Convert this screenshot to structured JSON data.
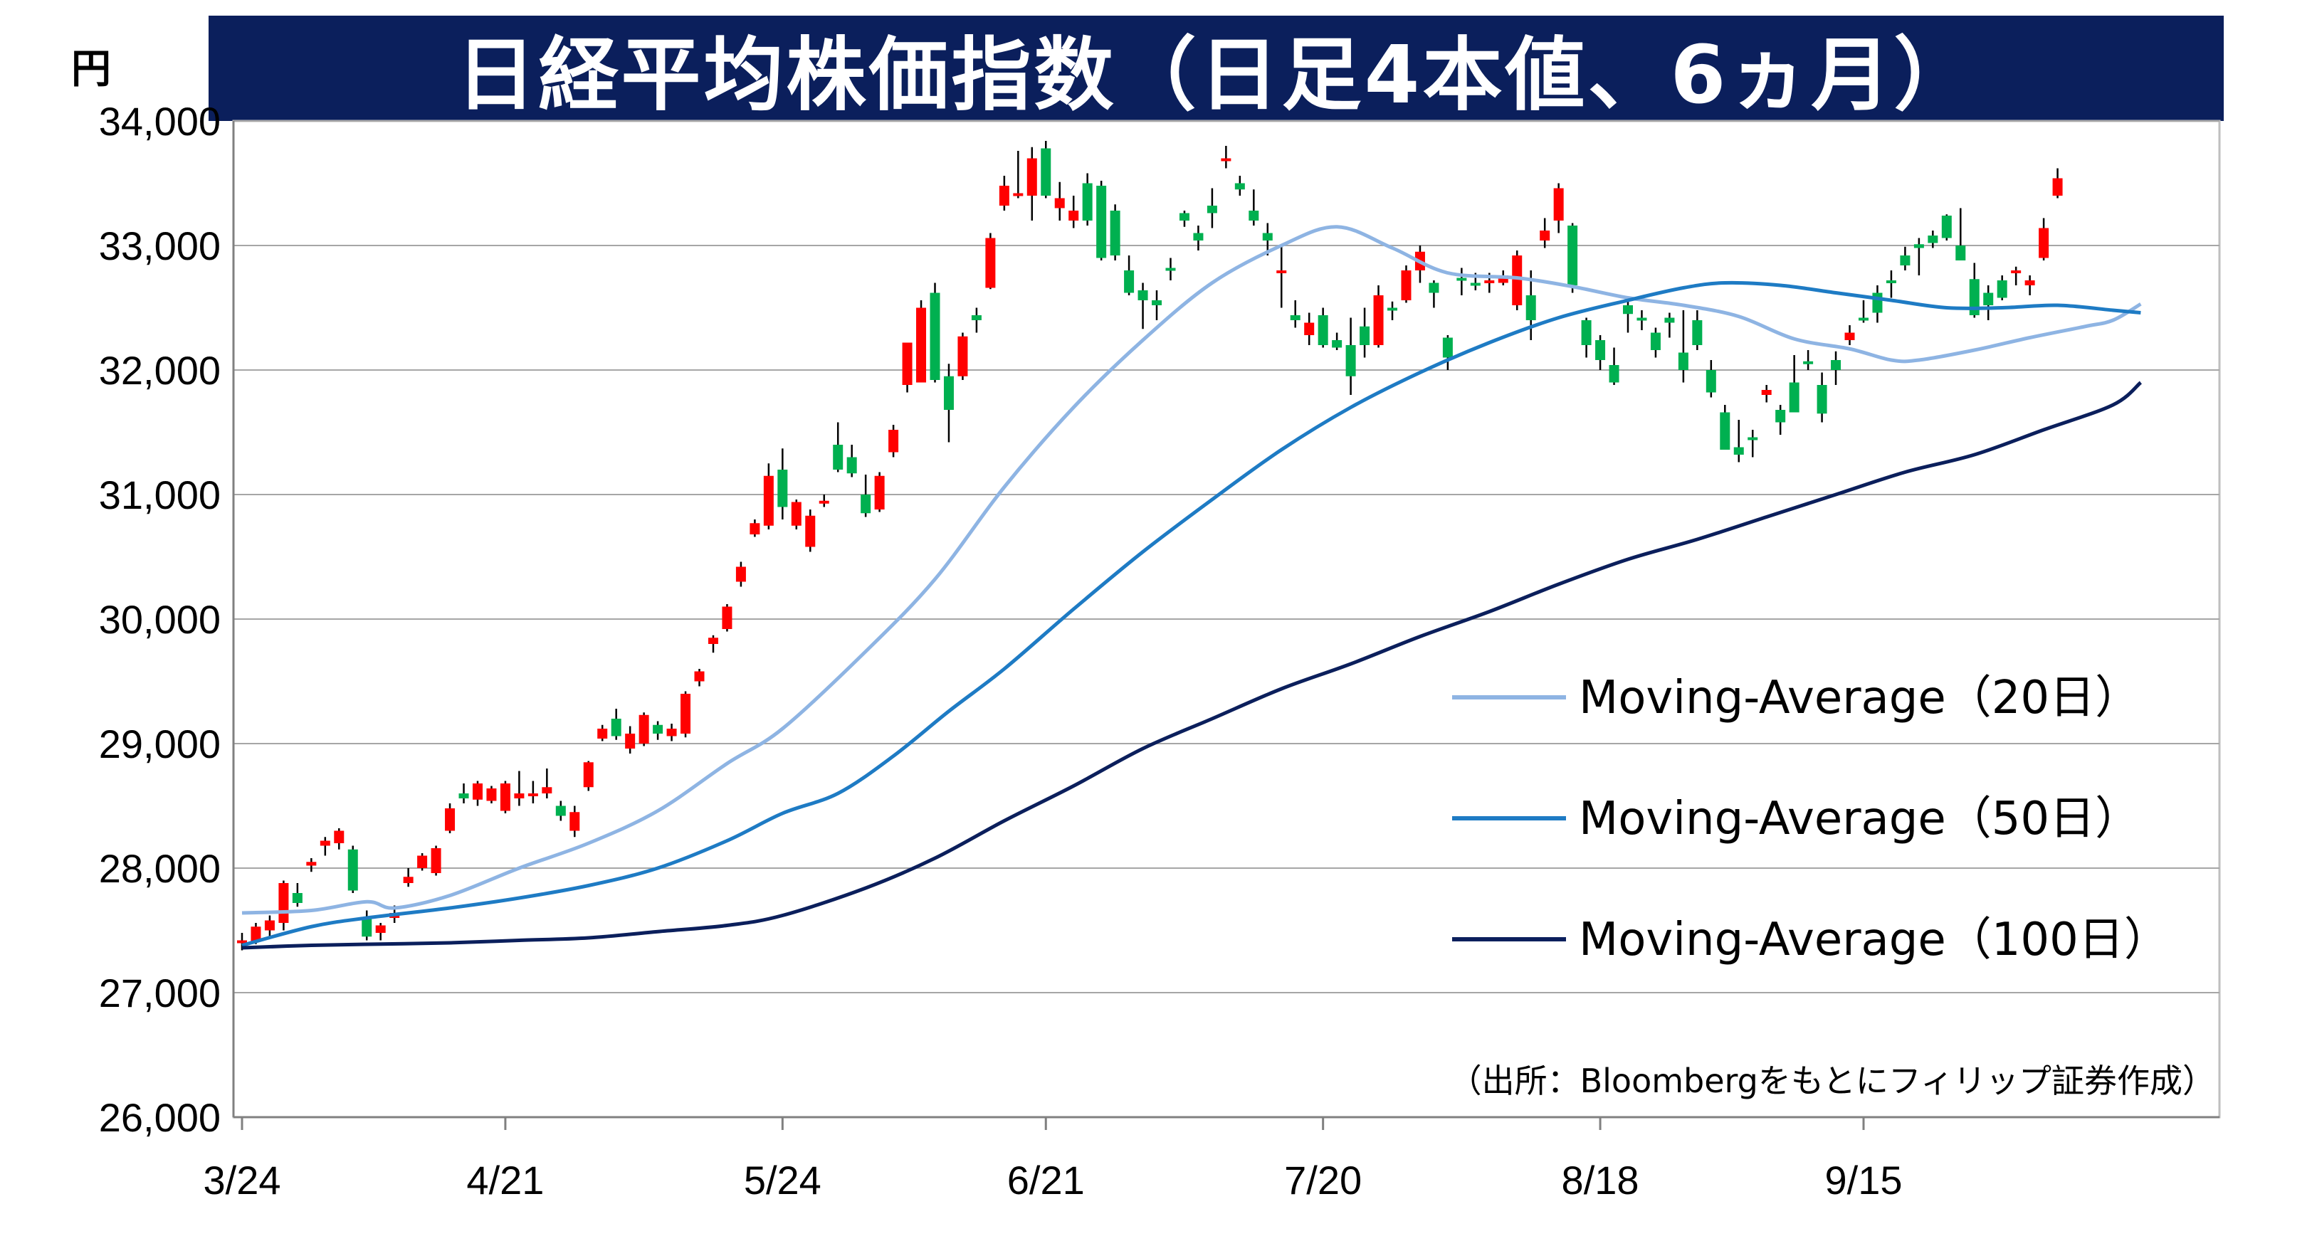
{
  "header": {
    "title": "日経平均株価指数（日足4本値、6ヵ月）",
    "unit": "円"
  },
  "chart_data": {
    "type": "candlestick",
    "title": "日経平均株価指数（日足4本値、6ヵ月）",
    "ylabel": "円",
    "ylim": [
      26000,
      34000
    ],
    "yticks": [
      26000,
      27000,
      28000,
      29000,
      30000,
      31000,
      32000,
      33000,
      34000
    ],
    "ytick_labels": [
      "26,000",
      "27,000",
      "28,000",
      "29,000",
      "30,000",
      "31,000",
      "32,000",
      "33,000",
      "34,000"
    ],
    "xtick_labels": [
      "3/24",
      "4/21",
      "5/24",
      "6/21",
      "7/20",
      "8/18",
      "9/15"
    ],
    "xtick_index": [
      0,
      19,
      39,
      58,
      78,
      98,
      117
    ],
    "grid": true,
    "legend_position": "right",
    "source_note": "（出所：Bloombergをもとにフィリップ証券作成）",
    "colors": {
      "up": "#ff0000",
      "down": "#00b050",
      "ma20": "#8eb4e3",
      "ma50": "#1e7bc4",
      "ma100": "#0b1f5c",
      "title_bg": "#0b1f5c"
    },
    "candles": [
      [
        27400,
        27480,
        27340,
        27420
      ],
      [
        27410,
        27560,
        27390,
        27530
      ],
      [
        27500,
        27620,
        27450,
        27580
      ],
      [
        27560,
        27900,
        27500,
        27880
      ],
      [
        27800,
        27880,
        27690,
        27720
      ],
      [
        28020,
        28080,
        27970,
        28050
      ],
      [
        28180,
        28250,
        28100,
        28220
      ],
      [
        28200,
        28320,
        28150,
        28300
      ],
      [
        28150,
        28180,
        27800,
        27820
      ],
      [
        27600,
        27660,
        27420,
        27450
      ],
      [
        27480,
        27560,
        27420,
        27540
      ],
      [
        27600,
        27700,
        27560,
        27640
      ],
      [
        27880,
        28000,
        27850,
        27930
      ],
      [
        28000,
        28120,
        27980,
        28100
      ],
      [
        27960,
        28180,
        27940,
        28160
      ],
      [
        28300,
        28520,
        28280,
        28480
      ],
      [
        28600,
        28680,
        28520,
        28560
      ],
      [
        28550,
        28700,
        28500,
        28680
      ],
      [
        28540,
        28660,
        28520,
        28640
      ],
      [
        28460,
        28700,
        28440,
        28680
      ],
      [
        28560,
        28780,
        28500,
        28600
      ],
      [
        28580,
        28700,
        28520,
        28600
      ],
      [
        28600,
        28800,
        28560,
        28650
      ],
      [
        28500,
        28540,
        28380,
        28420
      ],
      [
        28300,
        28500,
        28250,
        28450
      ],
      [
        28650,
        28860,
        28620,
        28850
      ],
      [
        29040,
        29150,
        29020,
        29120
      ],
      [
        29200,
        29280,
        29030,
        29060
      ],
      [
        28960,
        29140,
        28920,
        29080
      ],
      [
        29000,
        29250,
        28980,
        29230
      ],
      [
        29150,
        29180,
        29030,
        29080
      ],
      [
        29060,
        29160,
        29020,
        29120
      ],
      [
        29080,
        29420,
        29050,
        29400
      ],
      [
        29500,
        29600,
        29460,
        29580
      ],
      [
        29800,
        29870,
        29730,
        29850
      ],
      [
        29920,
        30120,
        29900,
        30100
      ],
      [
        30300,
        30460,
        30260,
        30420
      ],
      [
        30680,
        30800,
        30660,
        30770
      ],
      [
        30750,
        31250,
        30720,
        31150
      ],
      [
        31200,
        31370,
        30800,
        30900
      ],
      [
        30750,
        30960,
        30720,
        30940
      ],
      [
        30580,
        30880,
        30540,
        30830
      ],
      [
        30940,
        31000,
        30900,
        30950
      ],
      [
        31400,
        31580,
        31180,
        31200
      ],
      [
        31300,
        31400,
        31140,
        31170
      ],
      [
        31000,
        31160,
        30820,
        30850
      ],
      [
        30880,
        31180,
        30860,
        31150
      ],
      [
        31340,
        31560,
        31300,
        31520
      ],
      [
        31880,
        32220,
        31820,
        32220
      ],
      [
        31900,
        32560,
        31900,
        32500
      ],
      [
        32620,
        32700,
        31900,
        31920
      ],
      [
        31950,
        32050,
        31420,
        31680
      ],
      [
        31950,
        32300,
        31920,
        32270
      ],
      [
        32440,
        32500,
        32300,
        32400
      ],
      [
        32660,
        33100,
        32650,
        33060
      ],
      [
        33320,
        33560,
        33280,
        33480
      ],
      [
        33400,
        33760,
        33380,
        33420
      ],
      [
        33400,
        33790,
        33200,
        33700
      ],
      [
        33780,
        33840,
        33380,
        33400
      ],
      [
        33300,
        33510,
        33200,
        33380
      ],
      [
        33200,
        33400,
        33140,
        33280
      ],
      [
        33500,
        33580,
        33160,
        33200
      ],
      [
        33480,
        33520,
        32880,
        32900
      ],
      [
        33280,
        33330,
        32880,
        32920
      ],
      [
        32800,
        32920,
        32600,
        32620
      ],
      [
        32640,
        32700,
        32330,
        32560
      ],
      [
        32560,
        32640,
        32400,
        32520
      ],
      [
        32820,
        32900,
        32720,
        32800
      ],
      [
        33260,
        33280,
        33150,
        33200
      ],
      [
        33100,
        33160,
        32960,
        33040
      ],
      [
        33320,
        33460,
        33140,
        33260
      ],
      [
        33680,
        33800,
        33620,
        33700
      ],
      [
        33500,
        33560,
        33400,
        33450
      ],
      [
        33280,
        33450,
        33160,
        33200
      ],
      [
        33100,
        33180,
        32920,
        33040
      ],
      [
        32790,
        33000,
        32500,
        32800
      ],
      [
        32440,
        32560,
        32340,
        32400
      ],
      [
        32280,
        32460,
        32200,
        32380
      ],
      [
        32440,
        32500,
        32180,
        32200
      ],
      [
        32240,
        32300,
        32160,
        32180
      ],
      [
        32200,
        32420,
        31800,
        31950
      ],
      [
        32350,
        32500,
        32100,
        32200
      ],
      [
        32200,
        32680,
        32180,
        32600
      ],
      [
        32500,
        32550,
        32400,
        32480
      ],
      [
        32560,
        32840,
        32540,
        32800
      ],
      [
        32800,
        33000,
        32700,
        32950
      ],
      [
        32700,
        32720,
        32500,
        32620
      ],
      [
        32260,
        32280,
        32000,
        32100
      ],
      [
        32740,
        32820,
        32600,
        32720
      ],
      [
        32700,
        32780,
        32640,
        32680
      ],
      [
        32700,
        32780,
        32620,
        32720
      ],
      [
        32700,
        32800,
        32680,
        32760
      ],
      [
        32520,
        32960,
        32480,
        32920
      ],
      [
        32600,
        32800,
        32240,
        32400
      ],
      [
        33040,
        33220,
        32980,
        33120
      ],
      [
        33200,
        33500,
        33100,
        33460
      ],
      [
        33160,
        33180,
        32620,
        32680
      ],
      [
        32400,
        32420,
        32100,
        32200
      ],
      [
        32240,
        32280,
        32000,
        32080
      ],
      [
        32040,
        32180,
        31880,
        31900
      ],
      [
        32520,
        32560,
        32300,
        32450
      ],
      [
        32420,
        32480,
        32320,
        32400
      ],
      [
        32300,
        32340,
        32100,
        32160
      ],
      [
        32420,
        32460,
        32260,
        32380
      ],
      [
        32140,
        32480,
        31900,
        32000
      ],
      [
        32400,
        32480,
        32160,
        32200
      ],
      [
        32000,
        32080,
        31780,
        31820
      ],
      [
        31660,
        31720,
        31360,
        31360
      ],
      [
        31380,
        31600,
        31260,
        31320
      ],
      [
        31460,
        31520,
        31300,
        31440
      ],
      [
        31800,
        31880,
        31740,
        31840
      ],
      [
        31680,
        31720,
        31480,
        31580
      ],
      [
        31900,
        32120,
        31660,
        31660
      ],
      [
        32070,
        32160,
        32000,
        32050
      ],
      [
        31880,
        31980,
        31580,
        31650
      ],
      [
        32080,
        32150,
        31880,
        32000
      ],
      [
        32240,
        32360,
        32200,
        32300
      ],
      [
        32420,
        32560,
        32380,
        32400
      ],
      [
        32620,
        32680,
        32380,
        32460
      ],
      [
        32720,
        32800,
        32580,
        32700
      ],
      [
        32920,
        32990,
        32800,
        32840
      ],
      [
        33010,
        33060,
        32760,
        32980
      ],
      [
        33080,
        33120,
        32980,
        33020
      ],
      [
        33240,
        33250,
        33040,
        33060
      ],
      [
        33000,
        33300,
        32900,
        32880
      ],
      [
        32730,
        32860,
        32420,
        32440
      ],
      [
        32620,
        32680,
        32400,
        32520
      ],
      [
        32720,
        32760,
        32560,
        32580
      ],
      [
        32780,
        32830,
        32680,
        32800
      ],
      [
        32680,
        32760,
        32600,
        32720
      ],
      [
        32900,
        33220,
        32880,
        33140
      ],
      [
        33400,
        33620,
        33380,
        33540
      ]
    ],
    "series": [
      {
        "name": "Moving-Average（20日）",
        "color": "#8eb4e3",
        "points": [
          [
            0,
            27640
          ],
          [
            5,
            27660
          ],
          [
            9,
            27730
          ],
          [
            11,
            27680
          ],
          [
            15,
            27780
          ],
          [
            20,
            28000
          ],
          [
            25,
            28200
          ],
          [
            30,
            28460
          ],
          [
            35,
            28840
          ],
          [
            39,
            29120
          ],
          [
            45,
            29740
          ],
          [
            50,
            30320
          ],
          [
            55,
            31060
          ],
          [
            60,
            31700
          ],
          [
            65,
            32240
          ],
          [
            70,
            32700
          ],
          [
            75,
            33000
          ],
          [
            79,
            33150
          ],
          [
            83,
            32980
          ],
          [
            87,
            32780
          ],
          [
            92,
            32740
          ],
          [
            96,
            32670
          ],
          [
            100,
            32580
          ],
          [
            104,
            32520
          ],
          [
            108,
            32430
          ],
          [
            112,
            32250
          ],
          [
            116,
            32170
          ],
          [
            119,
            32080
          ],
          [
            121,
            32080
          ],
          [
            125,
            32160
          ],
          [
            129,
            32260
          ],
          [
            133,
            32350
          ],
          [
            135,
            32400
          ],
          [
            137,
            32530
          ]
        ]
      },
      {
        "name": "Moving-Average（50日）",
        "color": "#1e7bc4",
        "points": [
          [
            0,
            27380
          ],
          [
            5,
            27530
          ],
          [
            9,
            27600
          ],
          [
            15,
            27680
          ],
          [
            20,
            27760
          ],
          [
            25,
            27860
          ],
          [
            30,
            28000
          ],
          [
            35,
            28220
          ],
          [
            39,
            28440
          ],
          [
            43,
            28600
          ],
          [
            47,
            28900
          ],
          [
            51,
            29260
          ],
          [
            55,
            29600
          ],
          [
            60,
            30080
          ],
          [
            65,
            30540
          ],
          [
            70,
            30960
          ],
          [
            75,
            31360
          ],
          [
            80,
            31700
          ],
          [
            85,
            31980
          ],
          [
            90,
            32220
          ],
          [
            95,
            32420
          ],
          [
            100,
            32560
          ],
          [
            104,
            32660
          ],
          [
            107,
            32700
          ],
          [
            111,
            32680
          ],
          [
            115,
            32620
          ],
          [
            119,
            32560
          ],
          [
            123,
            32500
          ],
          [
            127,
            32500
          ],
          [
            131,
            32520
          ],
          [
            135,
            32480
          ],
          [
            137,
            32460
          ]
        ]
      },
      {
        "name": "Moving-Average（100日）",
        "color": "#0b1f5c",
        "points": [
          [
            0,
            27360
          ],
          [
            5,
            27380
          ],
          [
            10,
            27390
          ],
          [
            15,
            27400
          ],
          [
            20,
            27420
          ],
          [
            25,
            27440
          ],
          [
            30,
            27490
          ],
          [
            35,
            27540
          ],
          [
            39,
            27620
          ],
          [
            45,
            27840
          ],
          [
            50,
            28080
          ],
          [
            55,
            28380
          ],
          [
            60,
            28660
          ],
          [
            65,
            28960
          ],
          [
            70,
            29200
          ],
          [
            75,
            29440
          ],
          [
            80,
            29640
          ],
          [
            85,
            29860
          ],
          [
            90,
            30060
          ],
          [
            95,
            30280
          ],
          [
            100,
            30480
          ],
          [
            105,
            30640
          ],
          [
            110,
            30820
          ],
          [
            115,
            31000
          ],
          [
            120,
            31180
          ],
          [
            125,
            31320
          ],
          [
            130,
            31520
          ],
          [
            135,
            31720
          ],
          [
            137,
            31900
          ]
        ]
      }
    ]
  }
}
